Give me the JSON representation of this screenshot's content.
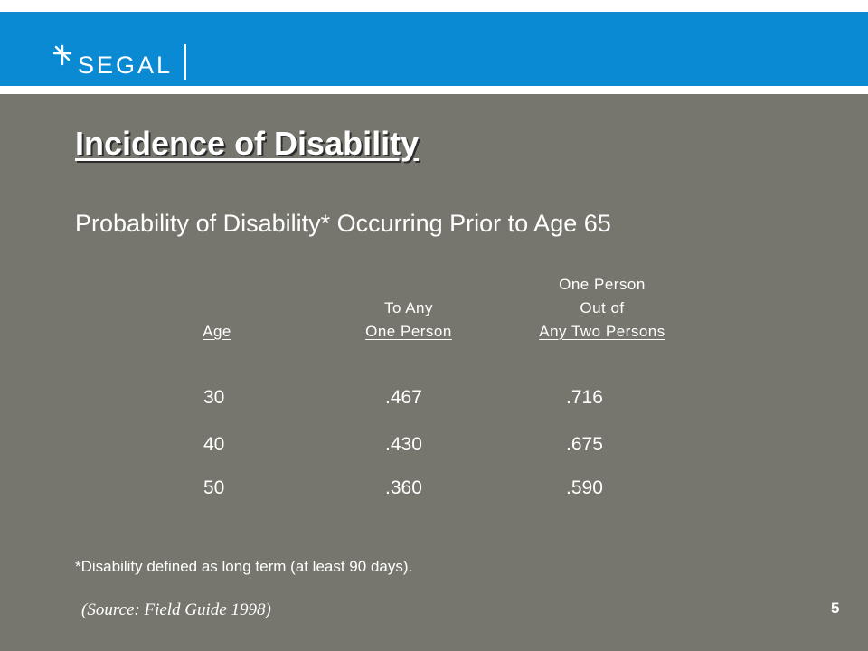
{
  "header": {
    "logo_text": "SEGAL"
  },
  "slide": {
    "title": "Incidence of Disability",
    "subtitle": "Probability of Disability* Occurring Prior to Age 65",
    "columns": [
      {
        "lines": [
          "Age"
        ]
      },
      {
        "lines": [
          "To Any",
          "One Person"
        ]
      },
      {
        "lines": [
          "One Person",
          "Out of",
          "Any Two Persons"
        ]
      }
    ],
    "rows": [
      {
        "age": "30",
        "any_one": ".467",
        "one_of_two": ".716"
      },
      {
        "age": "40",
        "any_one": ".430",
        "one_of_two": ".675"
      },
      {
        "age": "50",
        "any_one": ".360",
        "one_of_two": ".590"
      }
    ],
    "footnote": "*Disability defined as long term (at least 90 days).",
    "source": "(Source:  Field Guide 1998)",
    "page_number": "5"
  },
  "colors": {
    "background": "#76766e",
    "banner": "#0a8ad3",
    "text": "#ffffff"
  }
}
